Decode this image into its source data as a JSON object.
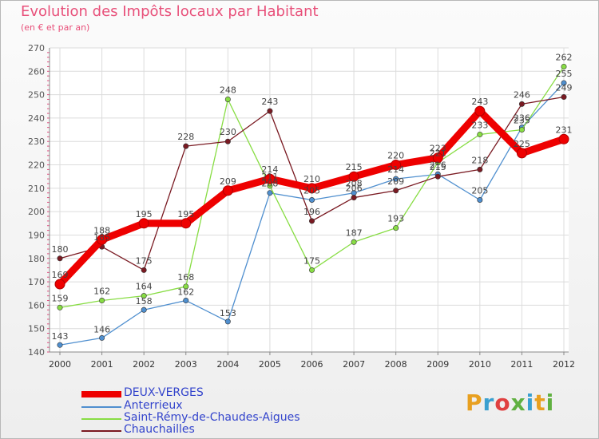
{
  "header": {
    "title": "Evolution des Impôts locaux par Habitant",
    "subtitle": "(en € et par an)"
  },
  "brand": {
    "logo_letters": [
      "P",
      "r",
      "o",
      "x",
      "i",
      "t",
      "i"
    ],
    "logo_colors": [
      "#e8a020",
      "#3aa0d0",
      "#e04040",
      "#60b040",
      "#3aa0d0",
      "#e8a020",
      "#60b040"
    ]
  },
  "chart_data": {
    "type": "line",
    "title": "Evolution des Impôts locaux par Habitant",
    "subtitle": "(en € et par an)",
    "xlabel": "",
    "ylabel": "",
    "ylim": [
      140,
      270
    ],
    "yticks": [
      140,
      150,
      160,
      170,
      180,
      190,
      200,
      210,
      220,
      230,
      240,
      250,
      260,
      270
    ],
    "categories": [
      "2000",
      "2001",
      "2002",
      "2003",
      "2004",
      "2005",
      "2006",
      "2007",
      "2008",
      "2009",
      "2010",
      "2011",
      "2012"
    ],
    "series": [
      {
        "name": "DEUX-VERGES",
        "color": "#ee0000",
        "emphasis": true,
        "values": [
          169,
          188,
          195,
          195,
          209,
          214,
          210,
          215,
          220,
          223,
          243,
          225,
          231
        ],
        "labels": [
          "169",
          "188",
          "195",
          "195",
          "209",
          "214",
          "210",
          "215",
          "220",
          "223",
          "243",
          "225",
          "231"
        ]
      },
      {
        "name": "Anterrieux",
        "color": "#4f8fcf",
        "values": [
          143,
          146,
          158,
          162,
          153,
          208,
          205,
          208,
          214,
          216,
          205,
          236,
          255
        ],
        "labels": [
          "143",
          "146",
          "158",
          "162",
          "153",
          "208",
          "205",
          "208",
          "214",
          "216",
          "205",
          "236",
          "255"
        ]
      },
      {
        "name": "Saint-Rémy-de-Chaudes-Aigues",
        "color": "#88dd44",
        "values": [
          159,
          162,
          164,
          168,
          248,
          211,
          175,
          187,
          193,
          221,
          233,
          235,
          262
        ],
        "labels": [
          "159",
          "162",
          "164",
          "168",
          "248",
          "211",
          "175",
          "187",
          "193",
          "221",
          "233",
          "235",
          "262"
        ]
      },
      {
        "name": "Chauchailles",
        "color": "#7a1a22",
        "values": [
          180,
          185,
          175,
          228,
          230,
          243,
          196,
          206,
          209,
          215,
          218,
          246,
          249
        ],
        "labels": [
          "180",
          "185",
          "175",
          "228",
          "230",
          "243",
          "196",
          "206",
          "209",
          "215",
          "218",
          "246",
          "249"
        ]
      }
    ],
    "legend_position": "bottom-left"
  }
}
